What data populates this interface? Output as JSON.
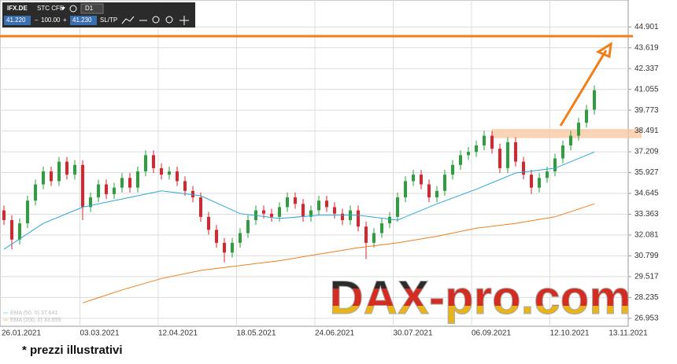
{
  "toolbar": {
    "symbol": "IFX.DE",
    "account": "STC CFD",
    "timeframe": "D1",
    "bid": "41.220",
    "volume": "100.00",
    "ask": "41.230",
    "sltp": "SL/TP"
  },
  "chart_data": {
    "type": "candlestick",
    "ylim": [
      26.46,
      46.56
    ],
    "yticks": [
      44.901,
      43.619,
      42.337,
      41.055,
      39.773,
      38.491,
      37.209,
      35.927,
      34.645,
      33.363,
      32.081,
      30.799,
      29.517,
      28.235,
      26.953
    ],
    "xtick_labels": [
      "26.01.2021",
      "03.03.2021",
      "12.04.2021",
      "18.05.2021",
      "24.06.2021",
      "30.07.2021",
      "06.09.2021",
      "12.10.2021",
      "13.11.2021"
    ],
    "grid": true,
    "up_color": "#2e9e3e",
    "down_color": "#d8262e",
    "open": [
      33.6,
      33.0,
      31.8,
      32.8,
      34.2,
      35.2,
      36.0,
      35.4,
      36.6,
      35.8,
      36.4,
      33.8,
      34.4,
      35.2,
      34.6,
      35.0,
      35.6,
      35.0,
      36.0,
      37.0,
      36.2,
      35.8,
      36.0,
      35.4,
      34.8,
      34.4,
      33.2,
      32.4,
      31.6,
      31.0,
      31.6,
      32.2,
      33.0,
      33.6,
      33.4,
      33.2,
      33.8,
      34.4,
      34.0,
      33.2,
      33.6,
      34.2,
      33.8,
      33.4,
      33.0,
      33.6,
      32.6,
      31.6,
      32.2,
      32.8,
      33.2,
      34.4,
      35.4,
      35.8,
      35.2,
      34.4,
      34.8,
      35.8,
      36.4,
      37.0,
      37.2,
      37.6,
      38.2,
      37.4,
      36.2,
      37.8,
      36.6,
      35.8,
      35.0,
      35.6,
      36.0,
      36.8,
      37.6,
      38.2,
      39.0,
      39.8
    ],
    "high": [
      33.9,
      33.3,
      33.1,
      34.5,
      35.5,
      36.3,
      36.3,
      36.9,
      36.9,
      36.7,
      36.7,
      34.7,
      35.5,
      35.5,
      35.3,
      35.9,
      35.9,
      36.3,
      37.3,
      37.3,
      36.5,
      36.3,
      36.3,
      35.7,
      35.1,
      34.7,
      33.5,
      32.7,
      31.9,
      31.9,
      32.5,
      33.3,
      33.9,
      33.9,
      33.7,
      34.1,
      34.7,
      34.7,
      34.3,
      33.9,
      34.5,
      34.5,
      34.1,
      33.7,
      33.9,
      33.9,
      32.9,
      32.5,
      33.1,
      33.5,
      34.7,
      35.7,
      36.1,
      36.1,
      35.5,
      35.1,
      36.1,
      36.7,
      37.3,
      37.5,
      37.9,
      38.5,
      38.5,
      37.7,
      38.1,
      38.1,
      36.9,
      36.1,
      35.9,
      36.3,
      37.1,
      37.9,
      38.5,
      39.3,
      40.1,
      41.3
    ],
    "low": [
      32.7,
      31.2,
      31.5,
      32.5,
      33.9,
      34.9,
      35.1,
      35.1,
      35.5,
      35.5,
      33.0,
      33.5,
      34.1,
      34.3,
      34.3,
      34.7,
      34.7,
      34.7,
      35.7,
      35.9,
      35.5,
      35.5,
      35.1,
      34.5,
      34.1,
      32.9,
      32.1,
      31.3,
      30.4,
      30.7,
      31.3,
      31.9,
      32.7,
      33.1,
      32.9,
      32.9,
      33.5,
      33.7,
      32.9,
      32.9,
      33.3,
      33.5,
      33.1,
      32.7,
      32.7,
      32.3,
      30.6,
      31.3,
      31.9,
      32.5,
      32.9,
      34.1,
      35.1,
      34.9,
      34.1,
      34.1,
      34.5,
      35.5,
      36.1,
      36.7,
      36.9,
      37.3,
      37.1,
      35.9,
      35.9,
      36.3,
      35.5,
      34.6,
      34.7,
      35.3,
      35.7,
      36.5,
      37.3,
      37.9,
      38.7,
      39.5
    ],
    "close": [
      33.0,
      31.8,
      32.8,
      34.2,
      35.2,
      36.0,
      35.4,
      36.6,
      35.8,
      36.4,
      33.8,
      34.4,
      35.2,
      34.6,
      35.0,
      35.6,
      35.0,
      36.0,
      37.0,
      36.2,
      35.8,
      36.0,
      35.4,
      34.8,
      34.4,
      33.2,
      32.4,
      31.6,
      31.0,
      31.6,
      32.2,
      33.0,
      33.6,
      33.4,
      33.2,
      33.8,
      34.4,
      34.0,
      33.2,
      33.6,
      34.2,
      33.8,
      33.4,
      33.0,
      33.6,
      32.6,
      31.6,
      32.2,
      32.8,
      33.2,
      34.4,
      35.4,
      35.8,
      35.2,
      34.4,
      34.8,
      35.8,
      36.4,
      37.0,
      37.2,
      37.6,
      38.2,
      37.4,
      36.2,
      37.8,
      36.6,
      35.8,
      35.0,
      35.6,
      36.0,
      36.8,
      37.6,
      38.2,
      39.0,
      39.8,
      41.0
    ],
    "series": [
      {
        "name": "EMA (50, 0) 37.641",
        "color": "#2aa7d8",
        "values": [
          31.2,
          32.8,
          33.8,
          34.3,
          34.8,
          34.5,
          33.4,
          33.1,
          33.3,
          33.3,
          33.0,
          34.0,
          34.9,
          35.9,
          36.2,
          37.2
        ]
      },
      {
        "name": "EMA (200, 0) 33.859",
        "color": "#f07f1a",
        "values": [
          null,
          null,
          27.9,
          28.7,
          29.4,
          29.9,
          30.2,
          30.5,
          30.9,
          31.3,
          31.6,
          32.0,
          32.5,
          32.8,
          33.2,
          34.0
        ]
      }
    ],
    "resistance_line": {
      "value": 44.33,
      "color": "#f07f1a"
    },
    "zone": {
      "from": 38.05,
      "to": 38.61,
      "color": "#f9c9a4"
    }
  },
  "watermark": "DAX-pro.com",
  "footnote": "* prezzi illustrativi"
}
